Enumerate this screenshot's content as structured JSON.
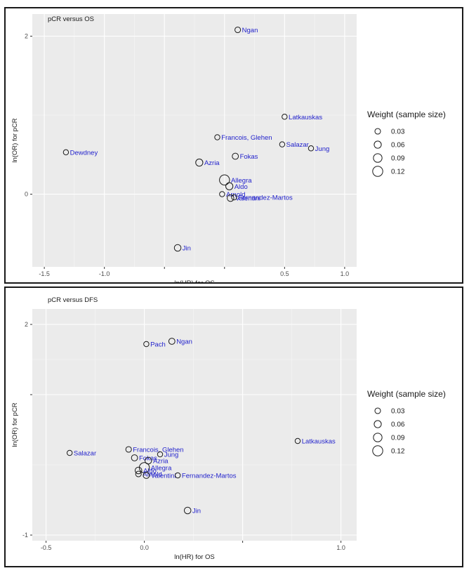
{
  "chart_data": [
    {
      "type": "scatter",
      "title": "pCR versus OS",
      "xlabel": "ln(HR) for OS",
      "ylabel": "ln(OR) for pCR",
      "xlim": [
        -1.6,
        1.1
      ],
      "ylim": [
        -0.92,
        2.28
      ],
      "xticks": [
        -1.5,
        -1.0,
        -0.5,
        0.0,
        0.5,
        1.0
      ],
      "xtick_labels": [
        "-1.5",
        "-1.0",
        "",
        "",
        "0.5",
        "1.0"
      ],
      "yticks": [
        2,
        0
      ],
      "ytick_labels": [
        "2",
        "0"
      ],
      "grid": true,
      "size_legend": {
        "title": "Weight (sample size)",
        "entries": [
          {
            "label": "0.03",
            "weight": 0.03
          },
          {
            "label": "0.06",
            "weight": 0.06
          },
          {
            "label": "0.09",
            "weight": 0.09
          },
          {
            "label": "0.12",
            "weight": 0.12
          }
        ]
      },
      "points": [
        {
          "label": "Ngan",
          "x": 0.11,
          "y": 2.08,
          "weight": 0.03
        },
        {
          "label": "Latkauskas",
          "x": 0.5,
          "y": 0.98,
          "weight": 0.02
        },
        {
          "label": "Francois, Glehen",
          "x": -0.06,
          "y": 0.72,
          "weight": 0.02
        },
        {
          "label": "Salazar",
          "x": 0.48,
          "y": 0.63,
          "weight": 0.02
        },
        {
          "label": "Jung",
          "x": 0.72,
          "y": 0.58,
          "weight": 0.02
        },
        {
          "label": "Dewdney",
          "x": -1.32,
          "y": 0.53,
          "weight": 0.02
        },
        {
          "label": "Fokas",
          "x": 0.09,
          "y": 0.48,
          "weight": 0.04
        },
        {
          "label": "Azria",
          "x": -0.21,
          "y": 0.4,
          "weight": 0.06
        },
        {
          "label": "Allegra",
          "x": 0.0,
          "y": 0.18,
          "weight": 0.12
        },
        {
          "label": "Aldo",
          "x": 0.04,
          "y": 0.1,
          "weight": 0.06
        },
        {
          "label": "Arnold",
          "x": -0.02,
          "y": 0.0,
          "weight": 0.02
        },
        {
          "label": "Valentini",
          "x": 0.05,
          "y": -0.05,
          "weight": 0.05
        },
        {
          "label": "Fernandez-Martos",
          "x": 0.08,
          "y": -0.04,
          "weight": 0.02
        },
        {
          "label": "Jin",
          "x": -0.39,
          "y": -0.68,
          "weight": 0.05
        }
      ]
    },
    {
      "type": "scatter",
      "title": "pCR versus DFS",
      "xlabel": "ln(HR) for OS",
      "ylabel": "ln(OR) for pCR",
      "xlim": [
        -0.57,
        1.08
      ],
      "ylim": [
        -1.08,
        2.22
      ],
      "xticks": [
        -0.5,
        0.0,
        0.5,
        1.0
      ],
      "xtick_labels": [
        "-0.5",
        "0.0",
        "",
        "1.0"
      ],
      "yticks": [
        2,
        1,
        -1
      ],
      "ytick_labels": [
        "2",
        "",
        "-1"
      ],
      "grid": true,
      "size_legend": {
        "title": "Weight (sample size)",
        "entries": [
          {
            "label": "0.03",
            "weight": 0.03
          },
          {
            "label": "0.06",
            "weight": 0.06
          },
          {
            "label": "0.09",
            "weight": 0.09
          },
          {
            "label": "0.12",
            "weight": 0.12
          }
        ]
      },
      "points": [
        {
          "label": "Pach",
          "x": 0.01,
          "y": 1.72,
          "weight": 0.02
        },
        {
          "label": "Ngan",
          "x": 0.14,
          "y": 1.76,
          "weight": 0.04
        },
        {
          "label": "Latkauskas",
          "x": 0.78,
          "y": 0.34,
          "weight": 0.02
        },
        {
          "label": "Francois, Glehen",
          "x": -0.08,
          "y": 0.22,
          "weight": 0.03
        },
        {
          "label": "Salazar",
          "x": -0.38,
          "y": 0.17,
          "weight": 0.02
        },
        {
          "label": "Jung",
          "x": 0.08,
          "y": 0.15,
          "weight": 0.02
        },
        {
          "label": "Fokas",
          "x": -0.05,
          "y": 0.1,
          "weight": 0.04
        },
        {
          "label": "Azria",
          "x": 0.02,
          "y": 0.06,
          "weight": 0.05
        },
        {
          "label": "Allegra",
          "x": 0.0,
          "y": -0.04,
          "weight": 0.12
        },
        {
          "label": "Aldo",
          "x": -0.03,
          "y": -0.08,
          "weight": 0.05
        },
        {
          "label": "Arnold",
          "x": -0.03,
          "y": -0.13,
          "weight": 0.03
        },
        {
          "label": "Valentini",
          "x": 0.01,
          "y": -0.15,
          "weight": 0.04
        },
        {
          "label": "Fernandez-Martos",
          "x": 0.17,
          "y": -0.15,
          "weight": 0.02
        },
        {
          "label": "Jin",
          "x": 0.22,
          "y": -0.65,
          "weight": 0.05
        }
      ]
    }
  ]
}
